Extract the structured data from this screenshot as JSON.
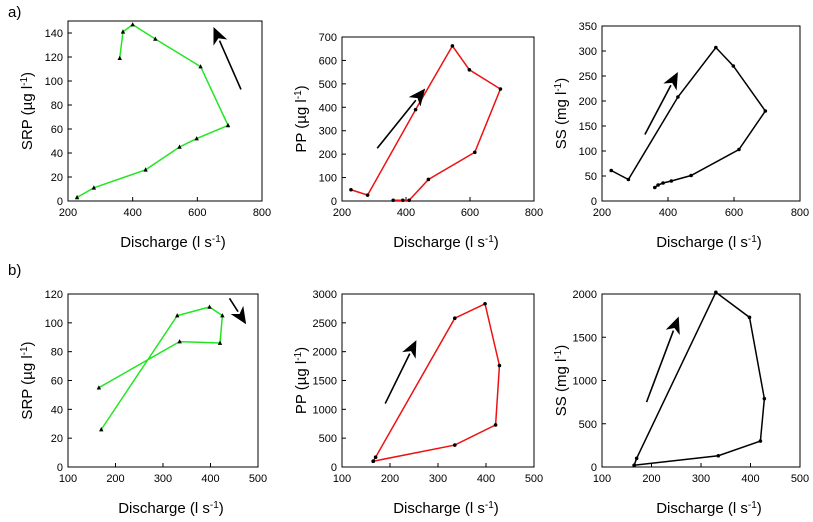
{
  "panel_labels": [
    "a)",
    "b)"
  ],
  "chart_data": [
    {
      "type": "line",
      "panel": "a)",
      "xlabel": "Discharge (l s-1)",
      "ylabel": "SRP (µg l-1)",
      "xlim": [
        200,
        800
      ],
      "ylim": [
        0,
        150
      ],
      "xticks": [
        "200",
        "400",
        "600",
        "800"
      ],
      "yticks": [
        "0",
        "20",
        "40",
        "60",
        "80",
        "100",
        "120",
        "140"
      ],
      "grid": false,
      "color": "#22e622",
      "marker": "triangle",
      "points": [
        [
          228,
          3
        ],
        [
          280,
          11
        ],
        [
          440,
          26
        ],
        [
          545,
          45
        ],
        [
          598,
          52
        ],
        [
          695,
          63
        ],
        [
          610,
          112
        ],
        [
          470,
          135
        ],
        [
          400,
          147
        ],
        [
          370,
          141
        ],
        [
          360,
          119
        ]
      ],
      "arrow": {
        "from": [
          735,
          93
        ],
        "to": [
          650,
          145
        ]
      }
    },
    {
      "type": "line",
      "panel": "a)",
      "xlabel": "Discharge (l s-1)",
      "ylabel": "PP (µg l-1)",
      "xlim": [
        200,
        800
      ],
      "ylim": [
        0,
        700
      ],
      "xticks": [
        "200",
        "400",
        "600",
        "800"
      ],
      "yticks": [
        "0",
        "100",
        "200",
        "300",
        "400",
        "500",
        "600",
        "700"
      ],
      "grid": false,
      "color": "#ee1111",
      "marker": "circle",
      "points": [
        [
          360,
          3
        ],
        [
          390,
          3
        ],
        [
          410,
          3
        ],
        [
          470,
          92
        ],
        [
          615,
          208
        ],
        [
          695,
          478
        ],
        [
          598,
          560
        ],
        [
          545,
          662
        ],
        [
          430,
          390
        ],
        [
          280,
          25
        ],
        [
          228,
          48
        ]
      ],
      "arrow": {
        "from": [
          310,
          225
        ],
        "to": [
          460,
          480
        ]
      }
    },
    {
      "type": "line",
      "panel": "a)",
      "xlabel": "Discharge (l s-1)",
      "ylabel": "SS (mg l-1)",
      "xlim": [
        200,
        800
      ],
      "ylim": [
        0,
        350
      ],
      "xticks": [
        "200",
        "400",
        "600",
        "800"
      ],
      "yticks": [
        "0",
        "50",
        "100",
        "150",
        "200",
        "250",
        "300",
        "350"
      ],
      "grid": false,
      "color": "#000000",
      "marker": "circle",
      "points": [
        [
          360,
          27
        ],
        [
          370,
          32
        ],
        [
          385,
          36
        ],
        [
          410,
          40
        ],
        [
          470,
          51
        ],
        [
          615,
          103
        ],
        [
          695,
          180
        ],
        [
          598,
          270
        ],
        [
          545,
          307
        ],
        [
          430,
          208
        ],
        [
          280,
          43
        ],
        [
          228,
          61
        ]
      ],
      "arrow": {
        "from": [
          330,
          133
        ],
        "to": [
          430,
          258
        ]
      }
    },
    {
      "type": "line",
      "panel": "b)",
      "xlabel": "Discharge (l s-1)",
      "ylabel": "SRP (µg l-1)",
      "xlim": [
        100,
        500
      ],
      "ylim": [
        0,
        120
      ],
      "xticks": [
        "100",
        "200",
        "300",
        "400",
        "500"
      ],
      "yticks": [
        "0",
        "20",
        "40",
        "60",
        "80",
        "100",
        "120"
      ],
      "grid": false,
      "color": "#22e622",
      "marker": "triangle",
      "points": [
        [
          165,
          55
        ],
        [
          335,
          87
        ],
        [
          420,
          86
        ],
        [
          425,
          105
        ],
        [
          398,
          111
        ],
        [
          330,
          105
        ],
        [
          170,
          26
        ]
      ],
      "arrow": {
        "from": [
          440,
          117
        ],
        "to": [
          475,
          99
        ]
      }
    },
    {
      "type": "line",
      "panel": "b)",
      "xlabel": "Discharge (l s-1)",
      "ylabel": "PP (µg l-1)",
      "xlim": [
        100,
        500
      ],
      "ylim": [
        0,
        3000
      ],
      "xticks": [
        "100",
        "200",
        "300",
        "400",
        "500"
      ],
      "yticks": [
        "0",
        "500",
        "1000",
        "1500",
        "2000",
        "2500",
        "3000"
      ],
      "grid": false,
      "color": "#ee1111",
      "marker": "circle",
      "points": [
        [
          165,
          100
        ],
        [
          170,
          170
        ],
        [
          335,
          2580
        ],
        [
          398,
          2830
        ],
        [
          428,
          1760
        ],
        [
          420,
          730
        ],
        [
          335,
          380
        ],
        [
          165,
          100
        ]
      ],
      "arrow": {
        "from": [
          190,
          1100
        ],
        "to": [
          255,
          2200
        ]
      }
    },
    {
      "type": "line",
      "panel": "b)",
      "xlabel": "Discharge (l s-1)",
      "ylabel": "SS (mg l-1)",
      "xlim": [
        100,
        500
      ],
      "ylim": [
        0,
        2000
      ],
      "xticks": [
        "100",
        "200",
        "300",
        "400",
        "500"
      ],
      "yticks": [
        "0",
        "500",
        "1000",
        "1500",
        "2000"
      ],
      "grid": false,
      "color": "#000000",
      "marker": "circle",
      "points": [
        [
          165,
          20
        ],
        [
          170,
          100
        ],
        [
          330,
          2020
        ],
        [
          398,
          1730
        ],
        [
          428,
          790
        ],
        [
          420,
          300
        ],
        [
          335,
          130
        ],
        [
          165,
          20
        ]
      ],
      "arrow": {
        "from": [
          190,
          750
        ],
        "to": [
          255,
          1740
        ]
      }
    }
  ]
}
